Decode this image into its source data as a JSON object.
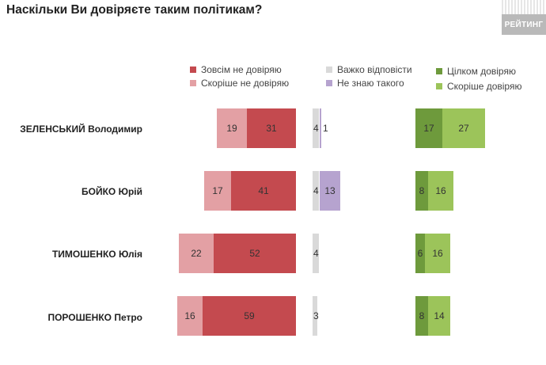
{
  "header": {
    "title": "Наскільки Ви довіряєте таким політикам?",
    "logo_text": "РЕЙТИНГ"
  },
  "legend": {
    "not_trust_at_all": "Зовсім не довіряю",
    "rather_not_trust": "Скоріше не довіряю",
    "hard_to_say": "Важко відповісти",
    "dont_know": "Не знаю такого",
    "fully_trust": "Цілком довіряю",
    "rather_trust": "Скоріше довіряю"
  },
  "colors": {
    "not_trust_at_all": "#c44a4f",
    "rather_not_trust": "#e3a0a4",
    "hard_to_say": "#d9d9d9",
    "dont_know": "#b6a3cf",
    "fully_trust": "#6e9a3c",
    "rather_trust": "#9cc45a"
  },
  "chart_data": {
    "type": "bar",
    "title": "Наскільки Ви довіряєте таким політикам?",
    "categories": [
      "ЗЕЛЕНСЬКИЙ Володимир",
      "БОЙКО Юрій",
      "ТИМОШЕНКО Юлія",
      "ПОРОШЕНКО Петро"
    ],
    "series": [
      {
        "name": "Зовсім не довіряю",
        "values": [
          31,
          41,
          52,
          59
        ]
      },
      {
        "name": "Скоріше не довіряю",
        "values": [
          19,
          17,
          22,
          16
        ]
      },
      {
        "name": "Важко відповісти",
        "values": [
          4,
          4,
          4,
          3
        ]
      },
      {
        "name": "Не знаю такого",
        "values": [
          1,
          13,
          null,
          null
        ]
      },
      {
        "name": "Цілком довіряю",
        "values": [
          17,
          8,
          6,
          8
        ]
      },
      {
        "name": "Скоріше довіряю",
        "values": [
          27,
          16,
          16,
          14
        ]
      }
    ]
  }
}
